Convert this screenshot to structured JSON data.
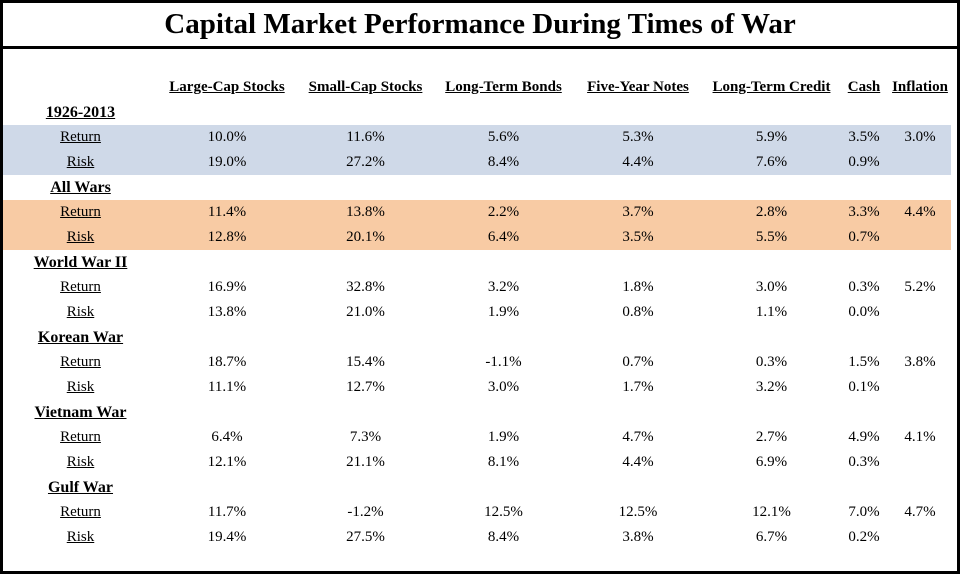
{
  "title": "Capital Market Performance During Times of War",
  "colors": {
    "highlight_blue": "#CFD9E8",
    "highlight_orange": "#F8CBA4",
    "border": "#000000",
    "background": "#FFFFFF",
    "text": "#000000"
  },
  "chart_data": {
    "type": "table",
    "title": "Capital Market Performance During Times of War",
    "columns": [
      "Large-Cap Stocks",
      "Small-Cap Stocks",
      "Long-Term Bonds",
      "Five-Year Notes",
      "Long-Term Credit",
      "Cash",
      "Inflation"
    ],
    "row_labels": {
      "return": "Return",
      "risk": "Risk"
    },
    "sections": [
      {
        "name": "1926-2013",
        "highlight": "blue",
        "return": [
          "10.0%",
          "11.6%",
          "5.6%",
          "5.3%",
          "5.9%",
          "3.5%",
          "3.0%"
        ],
        "risk": [
          "19.0%",
          "27.2%",
          "8.4%",
          "4.4%",
          "7.6%",
          "0.9%",
          ""
        ]
      },
      {
        "name": "All Wars",
        "highlight": "orange",
        "return": [
          "11.4%",
          "13.8%",
          "2.2%",
          "3.7%",
          "2.8%",
          "3.3%",
          "4.4%"
        ],
        "risk": [
          "12.8%",
          "20.1%",
          "6.4%",
          "3.5%",
          "5.5%",
          "0.7%",
          ""
        ]
      },
      {
        "name": "World War II",
        "highlight": "none",
        "return": [
          "16.9%",
          "32.8%",
          "3.2%",
          "1.8%",
          "3.0%",
          "0.3%",
          "5.2%"
        ],
        "risk": [
          "13.8%",
          "21.0%",
          "1.9%",
          "0.8%",
          "1.1%",
          "0.0%",
          ""
        ]
      },
      {
        "name": "Korean War",
        "highlight": "none",
        "return": [
          "18.7%",
          "15.4%",
          "-1.1%",
          "0.7%",
          "0.3%",
          "1.5%",
          "3.8%"
        ],
        "risk": [
          "11.1%",
          "12.7%",
          "3.0%",
          "1.7%",
          "3.2%",
          "0.1%",
          ""
        ]
      },
      {
        "name": "Vietnam War",
        "highlight": "none",
        "return": [
          "6.4%",
          "7.3%",
          "1.9%",
          "4.7%",
          "2.7%",
          "4.9%",
          "4.1%"
        ],
        "risk": [
          "12.1%",
          "21.1%",
          "8.1%",
          "4.4%",
          "6.9%",
          "0.3%",
          ""
        ]
      },
      {
        "name": "Gulf War",
        "highlight": "none",
        "return": [
          "11.7%",
          "-1.2%",
          "12.5%",
          "12.5%",
          "12.1%",
          "7.0%",
          "4.7%"
        ],
        "risk": [
          "19.4%",
          "27.5%",
          "8.4%",
          "3.8%",
          "6.7%",
          "0.2%",
          ""
        ]
      }
    ]
  }
}
